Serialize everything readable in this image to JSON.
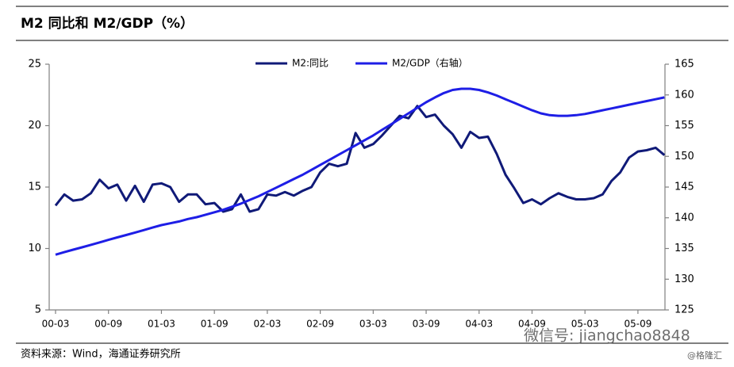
{
  "chart_data": {
    "type": "line",
    "title": "M2 同比和 M2/GDP（%）",
    "categories": [
      "00-03",
      null,
      null,
      null,
      null,
      null,
      "00-09",
      null,
      null,
      null,
      null,
      null,
      "01-03",
      null,
      null,
      null,
      null,
      null,
      "01-09",
      null,
      null,
      null,
      null,
      null,
      "02-03",
      null,
      null,
      null,
      null,
      null,
      "02-09",
      null,
      null,
      null,
      null,
      null,
      "03-03",
      null,
      null,
      null,
      null,
      null,
      "03-09",
      null,
      null,
      null,
      null,
      null,
      "04-03",
      null,
      null,
      null,
      null,
      null,
      "04-09",
      null,
      null,
      null,
      null,
      null,
      "05-03",
      null,
      null,
      null,
      null,
      null,
      "05-09",
      null,
      null,
      null
    ],
    "series": [
      {
        "name": "M2:同比",
        "color": "#101a78",
        "values": [
          13.5,
          14.4,
          13.9,
          14.0,
          14.5,
          15.6,
          14.9,
          15.2,
          13.9,
          15.1,
          13.8,
          15.2,
          15.3,
          15.0,
          13.8,
          14.4,
          14.4,
          13.6,
          13.7,
          13.0,
          13.2,
          14.4,
          13.0,
          13.2,
          14.4,
          14.3,
          14.6,
          14.3,
          14.7,
          15.0,
          16.2,
          16.9,
          16.7,
          16.9,
          19.4,
          18.2,
          18.5,
          19.2,
          20.0,
          20.8,
          20.6,
          21.6,
          20.7,
          20.9,
          20.0,
          19.3,
          18.2,
          19.5,
          19.0,
          19.1,
          17.7,
          16.0,
          14.9,
          13.7,
          14.0,
          13.6,
          14.1,
          14.5,
          14.2,
          14.0,
          14.0,
          14.1,
          14.4,
          15.5,
          16.2,
          17.4,
          17.9,
          18.0,
          18.2,
          17.6
        ]
      },
      {
        "name": "M2/GDP（右轴）",
        "color": "#1e1ee6",
        "axis": "y2",
        "values": [
          134.0,
          134.4,
          134.8,
          135.2,
          135.6,
          136.0,
          136.4,
          136.8,
          137.2,
          137.6,
          138.0,
          138.4,
          138.8,
          139.1,
          139.4,
          139.8,
          140.1,
          140.5,
          140.9,
          141.3,
          141.8,
          142.3,
          142.9,
          143.5,
          144.2,
          144.9,
          145.6,
          146.3,
          147.0,
          147.8,
          148.6,
          149.4,
          150.2,
          151.0,
          151.8,
          152.6,
          153.4,
          154.3,
          155.2,
          156.1,
          157.0,
          157.9,
          158.8,
          159.6,
          160.3,
          160.8,
          161.0,
          161.0,
          160.8,
          160.4,
          159.9,
          159.3,
          158.7,
          158.1,
          157.5,
          157.0,
          156.7,
          156.6,
          156.6,
          156.7,
          156.9,
          157.2,
          157.5,
          157.8,
          158.1,
          158.4,
          158.7,
          159.0,
          159.3,
          159.6
        ]
      }
    ],
    "ylim": [
      5,
      25
    ],
    "yticks": [
      5,
      10,
      15,
      20,
      25
    ],
    "y2lim": [
      125,
      165
    ],
    "y2ticks": [
      125,
      130,
      135,
      140,
      145,
      150,
      155,
      160,
      165
    ],
    "grid": false,
    "legend": "top"
  },
  "source": "资料来源：Wind，海通证券研究所",
  "watermark": [
    "微信号: jiangchao8848",
    "@格隆汇"
  ]
}
